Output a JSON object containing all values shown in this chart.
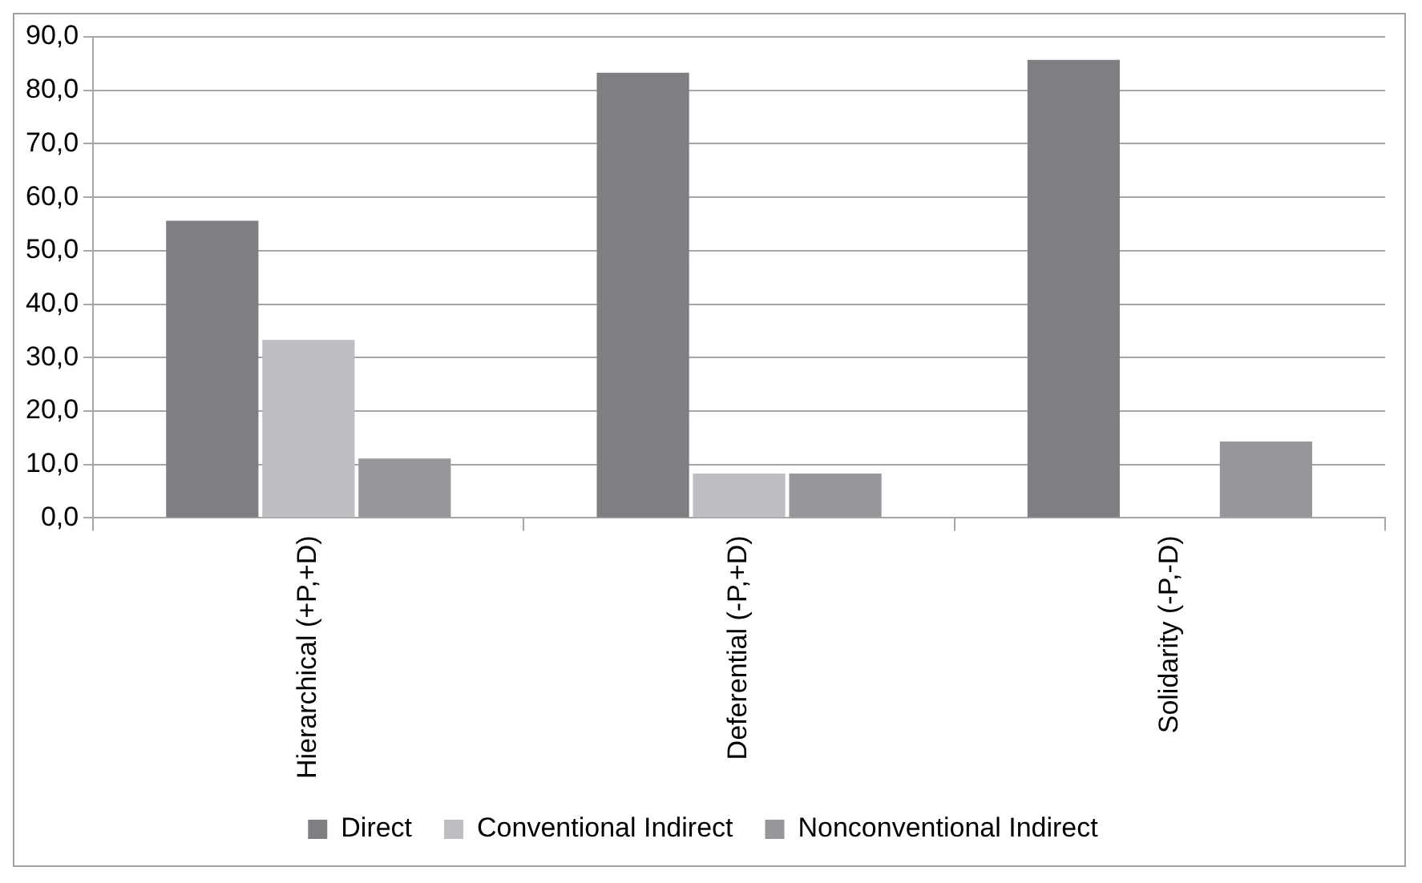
{
  "chart_data": {
    "type": "bar",
    "categories": [
      "Hierarchical (+P,+D)",
      "Deferential (-P,+D)",
      "Solidarity (-P,-D)"
    ],
    "series": [
      {
        "name": "Direct",
        "color": "#7f7f83",
        "values": [
          55.6,
          83.3,
          85.7
        ]
      },
      {
        "name": "Conventional Indirect",
        "color": "#bdbec2",
        "values": [
          33.3,
          8.3,
          0
        ]
      },
      {
        "name": "Nonconventional Indirect",
        "color": "#97979b",
        "values": [
          11.1,
          8.3,
          14.3
        ]
      }
    ],
    "ylim": [
      0,
      90
    ],
    "yticks": [
      {
        "value": 0,
        "label": "0,0"
      },
      {
        "value": 10,
        "label": "10,0"
      },
      {
        "value": 20,
        "label": "20,0"
      },
      {
        "value": 30,
        "label": "30,0"
      },
      {
        "value": 40,
        "label": "40,0"
      },
      {
        "value": 50,
        "label": "50,0"
      },
      {
        "value": 60,
        "label": "60,0"
      },
      {
        "value": 70,
        "label": "70,0"
      },
      {
        "value": 80,
        "label": "80,0"
      },
      {
        "value": 90,
        "label": "90,0"
      }
    ],
    "grid": "y",
    "legend": "bottom"
  }
}
